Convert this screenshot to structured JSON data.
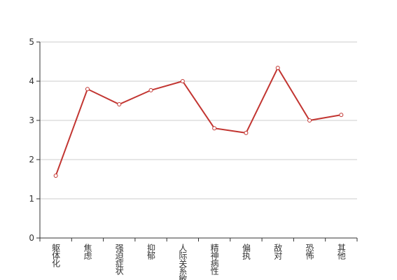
{
  "chart_data": {
    "type": "line",
    "categories": [
      "躯体化",
      "焦虑",
      "强迫症状",
      "抑郁",
      "人际关系敏感",
      "精神病性",
      "偏执",
      "敌对",
      "恐怖",
      "其他"
    ],
    "series": [
      {
        "color": "#c23531",
        "values": [
          1.59,
          3.8,
          3.41,
          3.77,
          4.0,
          2.8,
          2.68,
          4.34,
          3.0,
          3.14
        ]
      }
    ],
    "ylim": [
      0,
      5
    ],
    "yticks": [
      0,
      1,
      2,
      3,
      4,
      5
    ],
    "grid": true
  }
}
